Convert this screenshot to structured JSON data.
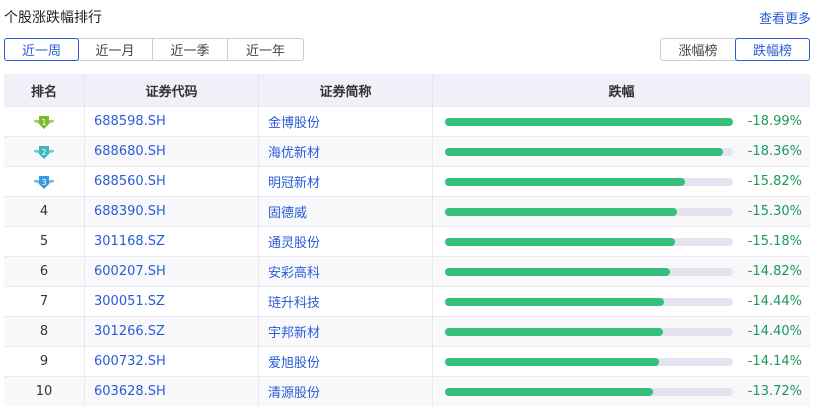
{
  "title": "个股涨跌幅排行",
  "more": "查看更多",
  "periods": [
    "近一周",
    "近一月",
    "近一季",
    "近一年"
  ],
  "active_period": 0,
  "boards": [
    "涨幅榜",
    "跌幅榜"
  ],
  "active_board": 1,
  "columns": [
    "排名",
    "证券代码",
    "证券简称",
    "跌幅"
  ],
  "colors": {
    "accent": "#2a5bd7",
    "bar": "#32c07a",
    "value": "#1a9a5a",
    "medal1": "#7cb82a",
    "medal2": "#3ab8c0",
    "medal3": "#3a9ae0"
  },
  "rows": [
    {
      "rank": "1",
      "code": "688598.SH",
      "name": "金博股份",
      "change": "-18.99%",
      "pct": 18.99
    },
    {
      "rank": "2",
      "code": "688680.SH",
      "name": "海优新材",
      "change": "-18.36%",
      "pct": 18.36
    },
    {
      "rank": "3",
      "code": "688560.SH",
      "name": "明冠新材",
      "change": "-15.82%",
      "pct": 15.82
    },
    {
      "rank": "4",
      "code": "688390.SH",
      "name": "固德威",
      "change": "-15.30%",
      "pct": 15.3
    },
    {
      "rank": "5",
      "code": "301168.SZ",
      "name": "通灵股份",
      "change": "-15.18%",
      "pct": 15.18
    },
    {
      "rank": "6",
      "code": "600207.SH",
      "name": "安彩高科",
      "change": "-14.82%",
      "pct": 14.82
    },
    {
      "rank": "7",
      "code": "300051.SZ",
      "name": "琏升科技",
      "change": "-14.44%",
      "pct": 14.44
    },
    {
      "rank": "8",
      "code": "301266.SZ",
      "name": "宇邦新材",
      "change": "-14.40%",
      "pct": 14.4
    },
    {
      "rank": "9",
      "code": "600732.SH",
      "name": "爱旭股份",
      "change": "-14.14%",
      "pct": 14.14
    },
    {
      "rank": "10",
      "code": "603628.SH",
      "name": "清源股份",
      "change": "-13.72%",
      "pct": 13.72
    }
  ]
}
